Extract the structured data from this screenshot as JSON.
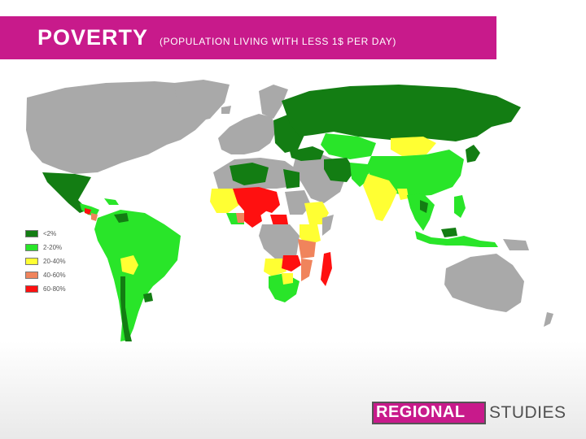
{
  "title": {
    "main": "POVERTY",
    "subtitle": "(POPULATION LIVING WITH LESS 1$ PER DAY)"
  },
  "legend": {
    "items": [
      {
        "label": "<2%",
        "color": "#137d13"
      },
      {
        "label": "2-20%",
        "color": "#29e529"
      },
      {
        "label": "20-40%",
        "color": "#ffff33"
      },
      {
        "label": "40-60%",
        "color": "#f0845c"
      },
      {
        "label": "60-80%",
        "color": "#ff1010"
      }
    ]
  },
  "brand": {
    "left": "REGIONAL",
    "right": "STUDIES"
  },
  "colors": {
    "accent": "#c81a8b",
    "no_data": "#a9a9a9"
  }
}
